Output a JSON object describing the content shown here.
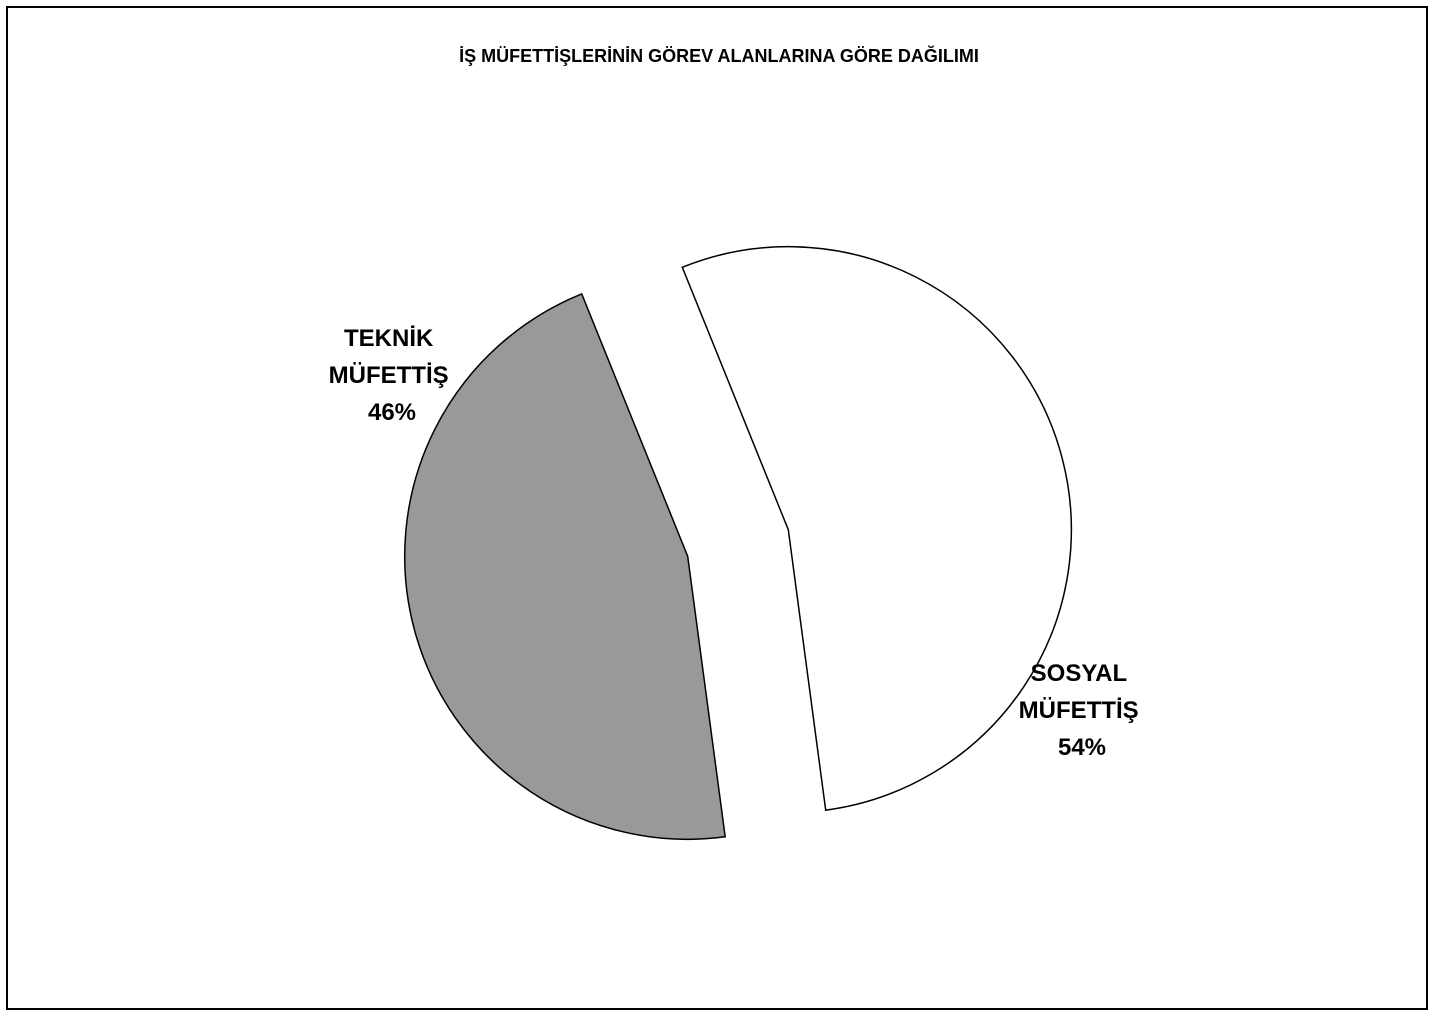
{
  "chart_data": {
    "type": "pie",
    "title": "İŞ MÜFETTİŞLERİNİN GÖREV ALANLARINA GÖRE DAĞILIMI",
    "slices": [
      {
        "name_line1": "TEKNİK",
        "name_line2": "MÜFETTİŞ",
        "value": 46,
        "value_label": "46%",
        "color": "#999999"
      },
      {
        "name_line1": "SOSYAL",
        "name_line2": "MÜFETTİŞ",
        "value": 54,
        "value_label": "54%",
        "color": "#ffffff"
      }
    ],
    "exploded": true,
    "legend": "none"
  }
}
